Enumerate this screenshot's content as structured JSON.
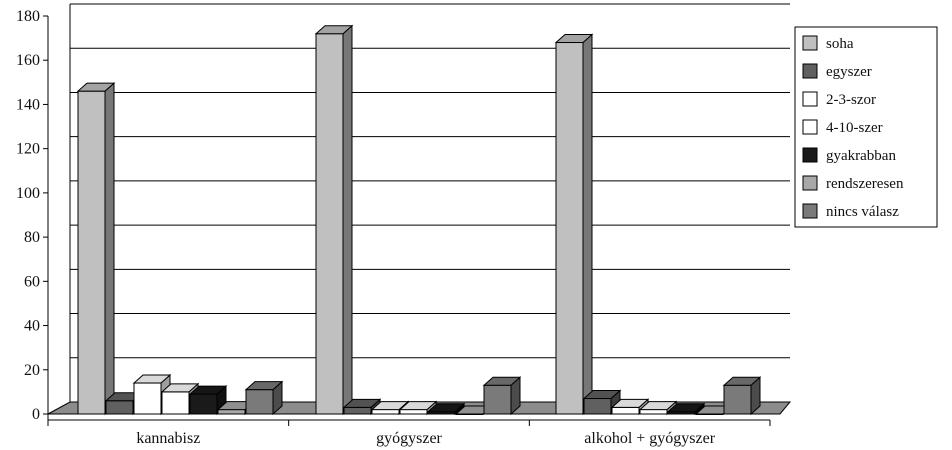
{
  "chart_data": {
    "type": "bar",
    "categories": [
      "kannabisz",
      "gyógyszer",
      "alkohol + gyógyszer"
    ],
    "series": [
      {
        "name": "soha",
        "values": [
          146,
          172,
          168
        ],
        "color": "#c0c0c0"
      },
      {
        "name": "egyszer",
        "values": [
          6,
          3,
          7
        ],
        "color": "#606060"
      },
      {
        "name": "2-3-szor",
        "values": [
          14,
          2,
          3
        ],
        "color": "#ffffff"
      },
      {
        "name": "4-10-szer",
        "values": [
          10,
          2,
          2
        ],
        "color": "#ffffff"
      },
      {
        "name": "gyakrabban",
        "values": [
          9,
          1,
          1
        ],
        "color": "#1a1a1a"
      },
      {
        "name": "rendszeresen",
        "values": [
          2,
          0,
          0
        ],
        "color": "#a8a8a8"
      },
      {
        "name": "nincs válasz",
        "values": [
          11,
          13,
          13
        ],
        "color": "#7a7a7a"
      }
    ],
    "yticks": [
      0,
      20,
      40,
      60,
      80,
      100,
      120,
      140,
      160,
      180
    ],
    "ylim": [
      0,
      180
    ],
    "grid": true,
    "legend_position": "right",
    "floor_color": "#8c8c8c"
  }
}
